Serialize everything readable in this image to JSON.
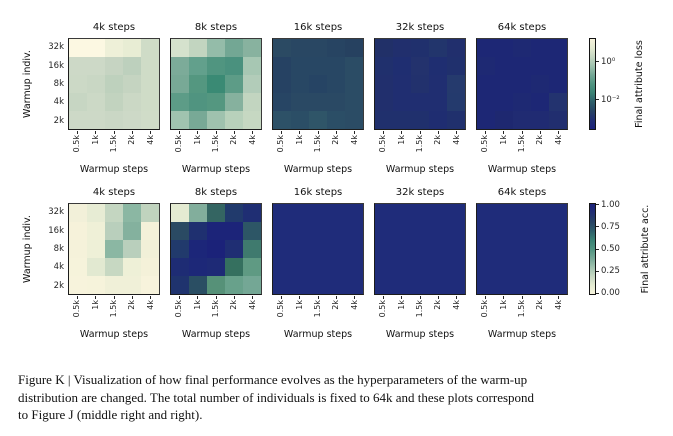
{
  "colors": {
    "background": "#ffffff",
    "text": "#1a1a1a",
    "tick_text": "#262626",
    "spine": "#2a2a2a",
    "colormap_stops": [
      "#f6f3dc",
      "#e3ead1",
      "#c5d7c2",
      "#9fc2ae",
      "#74a795",
      "#4f9480",
      "#3a8274",
      "#2e5e6a",
      "#274364",
      "#202e72",
      "#1b217a"
    ]
  },
  "chart_data": {
    "type": "heatmap",
    "x_categories": [
      "0.5k",
      "1k",
      "1.5k",
      "2k",
      "4k"
    ],
    "y_categories": [
      "32k",
      "16k",
      "8k",
      "4k",
      "2k"
    ],
    "xlabel": "Warmup steps",
    "ylabel": "Warmup indiv.",
    "grid": false,
    "rows": [
      {
        "metric": "Final attribute loss",
        "scale": "log",
        "colorbar": {
          "label": "Final attribute loss",
          "ticks": [
            "10⁰",
            "10⁻²"
          ],
          "tick_positions": [
            0.26,
            0.67
          ],
          "orientation": "vertical-right"
        },
        "panels": [
          {
            "title": "4k steps",
            "values": [
              [
                10,
                10,
                6,
                5,
                2.5
              ],
              [
                2.5,
                2.5,
                2.1,
                1.7,
                2.5
              ],
              [
                2.5,
                2.3,
                1.7,
                2.0,
                2.5
              ],
              [
                2.2,
                2.5,
                1.8,
                2.4,
                2.5
              ],
              [
                2.5,
                2.5,
                2.3,
                2.5,
                2.6
              ]
            ],
            "cell_colors": [
              [
                "#fcf8e2",
                "#fcf8e2",
                "#eef0d8",
                "#e8edd4",
                "#cfdcc7"
              ],
              [
                "#cdd9c7",
                "#cdd9c7",
                "#c6d4c2",
                "#bdd0bd",
                "#cfdcc7"
              ],
              [
                "#ccd9c6",
                "#c9d7c4",
                "#bed1bd",
                "#c5d4c1",
                "#cfdcc7"
              ],
              [
                "#c7d6c3",
                "#ccd9c6",
                "#c2d3bf",
                "#cbd8c5",
                "#cfdcc7"
              ],
              [
                "#cdd9c7",
                "#cdd9c7",
                "#cad7c5",
                "#cdd9c7",
                "#d0dcc8"
              ]
            ]
          },
          {
            "title": "8k steps",
            "values": [
              [
                2.8,
                1.9,
                0.55,
                0.25,
                0.4
              ],
              [
                0.32,
                0.18,
                0.11,
                0.1,
                1.0
              ],
              [
                0.3,
                0.12,
                0.06,
                0.15,
                1.3
              ],
              [
                0.15,
                0.11,
                0.12,
                0.45,
                1.9
              ],
              [
                0.9,
                0.3,
                0.85,
                1.5,
                2.0
              ]
            ],
            "cell_colors": [
              [
                "#d5e2cd",
                "#c2d5c0",
                "#94bca9",
                "#73a794",
                "#88b29f"
              ],
              [
                "#7cab99",
                "#62a08c",
                "#509580",
                "#4a917e",
                "#a7c7b3"
              ],
              [
                "#78a996",
                "#549780",
                "#3a8a74",
                "#5d9c87",
                "#b2ccb9"
              ],
              [
                "#5d9c87",
                "#509480",
                "#549780",
                "#86b19e",
                "#c2d5c0"
              ],
              [
                "#a0c3af",
                "#78a996",
                "#9fc2ae",
                "#b8d1bb",
                "#c6d8c2"
              ]
            ]
          },
          {
            "title": "16k steps",
            "values": [
              [
                0.004,
                0.0045,
                0.0045,
                0.005,
                0.0055
              ],
              [
                0.005,
                0.0042,
                0.0042,
                0.0042,
                0.0036
              ],
              [
                0.005,
                0.0042,
                0.0048,
                0.0042,
                0.0036
              ],
              [
                0.0046,
                0.004,
                0.004,
                0.004,
                0.0036
              ],
              [
                0.0028,
                0.0033,
                0.0025,
                0.0033,
                0.0036
              ]
            ],
            "cell_colors": [
              [
                "#2b4a63",
                "#294763",
                "#294763",
                "#274462",
                "#264160"
              ],
              [
                "#264263",
                "#284764",
                "#284764",
                "#284764",
                "#2b4c65"
              ],
              [
                "#264263",
                "#284764",
                "#264464",
                "#284764",
                "#2b4c65"
              ],
              [
                "#274564",
                "#2a4964",
                "#2a4964",
                "#2a4964",
                "#2b4c65"
              ],
              [
                "#2d5167",
                "#2b4e66",
                "#2f5568",
                "#2b4e66",
                "#2b4c65"
              ]
            ]
          },
          {
            "title": "32k steps",
            "values": [
              [
                0.0009,
                0.0008,
                0.0008,
                0.0011,
                0.0008
              ],
              [
                0.0008,
                0.0007,
                0.0009,
                0.0007,
                0.0008
              ],
              [
                0.0008,
                0.0007,
                0.0009,
                0.0007,
                0.0012
              ],
              [
                0.0008,
                0.0007,
                0.0007,
                0.0007,
                0.0012
              ],
              [
                0.0008,
                0.0008,
                0.0008,
                0.0007,
                0.0008
              ]
            ],
            "cell_colors": [
              [
                "#213068",
                "#212f6d",
                "#20306d",
                "#22356c",
                "#212f6d"
              ],
              [
                "#20306d",
                "#1f2e71",
                "#23326d",
                "#1f2e71",
                "#20306d"
              ],
              [
                "#212f6d",
                "#202e71",
                "#22316d",
                "#202e71",
                "#253a6d"
              ],
              [
                "#212f6d",
                "#202e71",
                "#202e71",
                "#202e71",
                "#243a6d"
              ],
              [
                "#20306d",
                "#20306d",
                "#20306d",
                "#1f2d71",
                "#20306d"
              ]
            ]
          },
          {
            "title": "64k steps",
            "values": [
              [
                0.0004,
                0.0004,
                0.00045,
                0.0004,
                0.0004
              ],
              [
                0.00045,
                0.0004,
                0.0004,
                0.0004,
                0.0004
              ],
              [
                0.0004,
                0.0004,
                0.0004,
                0.00045,
                0.0004
              ],
              [
                0.0004,
                0.0004,
                0.00045,
                0.0004,
                0.0007
              ],
              [
                0.0004,
                0.00045,
                0.0005,
                0.0005,
                0.0006
              ]
            ],
            "cell_colors": [
              [
                "#1d2775",
                "#1d2775",
                "#1e2973",
                "#1d2775",
                "#1d2775"
              ],
              [
                "#1e2973",
                "#1d2775",
                "#1d2775",
                "#1d2775",
                "#1d2775"
              ],
              [
                "#1d2775",
                "#1d2775",
                "#1d2775",
                "#1e2973",
                "#1d2775"
              ],
              [
                "#1d2775",
                "#1d2775",
                "#1e2973",
                "#1d2775",
                "#23336f"
              ],
              [
                "#1d2775",
                "#1e2870",
                "#202b72",
                "#202b72",
                "#212e6f"
              ]
            ]
          }
        ]
      },
      {
        "metric": "Final attribute acc.",
        "scale": "linear",
        "colorbar": {
          "label": "Final attribute acc.",
          "ticks": [
            "1.00",
            "0.75",
            "0.50",
            "0.25",
            "0.00"
          ],
          "tick_positions": [
            0.02,
            0.26,
            0.5,
            0.74,
            0.98
          ],
          "orientation": "vertical-right"
        },
        "panels": [
          {
            "title": "4k steps",
            "values": [
              [
                0.04,
                0.08,
                0.18,
                0.34,
                0.2
              ],
              [
                0.02,
                0.05,
                0.24,
                0.37,
                0.03
              ],
              [
                0.02,
                0.06,
                0.34,
                0.24,
                0.04
              ],
              [
                0.02,
                0.1,
                0.16,
                0.06,
                0.03
              ],
              [
                0.01,
                0.02,
                0.04,
                0.04,
                0.01
              ]
            ],
            "cell_colors": [
              [
                "#f2f0d9",
                "#e7ecd4",
                "#c4d6c1",
                "#8bb7a3",
                "#c0d3be"
              ],
              [
                "#f6f2da",
                "#eff0d7",
                "#b9cfbc",
                "#84b19e",
                "#f4f1d9"
              ],
              [
                "#f5f2da",
                "#eef0d7",
                "#8bb7a3",
                "#b9cfbc",
                "#f1f0d8"
              ],
              [
                "#f6f3db",
                "#e2e9d1",
                "#c7d8c2",
                "#eef0d7",
                "#f4f1d9"
              ],
              [
                "#f7f3dc",
                "#f6f3db",
                "#f0f0d8",
                "#f0f0d8",
                "#f7f3dc"
              ]
            ]
          },
          {
            "title": "8k steps",
            "values": [
              [
                0.09,
                0.36,
                0.62,
                0.8,
                0.88
              ],
              [
                0.72,
                0.85,
                0.95,
                0.95,
                0.68
              ],
              [
                0.8,
                0.93,
                0.96,
                0.88,
                0.55
              ],
              [
                0.9,
                0.92,
                0.91,
                0.6,
                0.47
              ],
              [
                0.82,
                0.7,
                0.48,
                0.44,
                0.41
              ]
            ],
            "cell_colors": [
              [
                "#e4ebd2",
                "#82ae9c",
                "#346562",
                "#213a6c",
                "#1f2e73"
              ],
              [
                "#2a4a63",
                "#1f3070",
                "#1c2479",
                "#1c2479",
                "#2d5666"
              ],
              [
                "#213a6c",
                "#1c2679",
                "#1b2279",
                "#1f2e73",
                "#3f7a6e"
              ],
              [
                "#1e2c74",
                "#1d2878",
                "#1e2a76",
                "#35705f",
                "#5f9a83"
              ],
              [
                "#1f336e",
                "#2a4e63",
                "#569178",
                "#68a18b",
                "#74a795"
              ]
            ]
          },
          {
            "title": "16k steps",
            "values": [
              [
                1.0,
                1.0,
                1.0,
                1.0,
                1.0
              ],
              [
                1.0,
                1.0,
                1.0,
                1.0,
                1.0
              ],
              [
                1.0,
                1.0,
                1.0,
                1.0,
                1.0
              ],
              [
                1.0,
                1.0,
                1.0,
                1.0,
                1.0
              ],
              [
                1.0,
                1.0,
                1.0,
                1.0,
                1.0
              ]
            ],
            "cell_colors": [
              [
                "#1f2c7a",
                "#1f2c7a",
                "#1f2c7a",
                "#1f2c7a",
                "#1f2c7a"
              ],
              [
                "#1f2c7a",
                "#1f2c7a",
                "#1f2c7a",
                "#1f2c7a",
                "#1f2c7a"
              ],
              [
                "#1f2c7a",
                "#1f2c7a",
                "#1f2c7a",
                "#1f2c7a",
                "#1f2c7a"
              ],
              [
                "#1f2c7a",
                "#1f2c7a",
                "#1f2c7a",
                "#1f2c7a",
                "#1f2c7a"
              ],
              [
                "#1f2c7a",
                "#1f2c7a",
                "#1f2c7a",
                "#1f2c7a",
                "#1f2c7a"
              ]
            ]
          },
          {
            "title": "32k steps",
            "values": [
              [
                1.0,
                1.0,
                1.0,
                1.0,
                1.0
              ],
              [
                1.0,
                1.0,
                1.0,
                1.0,
                1.0
              ],
              [
                1.0,
                1.0,
                1.0,
                1.0,
                1.0
              ],
              [
                1.0,
                1.0,
                1.0,
                1.0,
                1.0
              ],
              [
                1.0,
                1.0,
                1.0,
                1.0,
                1.0
              ]
            ],
            "cell_colors": [
              [
                "#1f2c7a",
                "#1f2c7a",
                "#1f2c7a",
                "#1f2c7a",
                "#1f2c7a"
              ],
              [
                "#1f2c7a",
                "#1f2c7a",
                "#1f2c7a",
                "#1f2c7a",
                "#1f2c7a"
              ],
              [
                "#1f2c7a",
                "#1f2c7a",
                "#1f2c7a",
                "#1f2c7a",
                "#1f2c7a"
              ],
              [
                "#1f2c7a",
                "#1f2c7a",
                "#1f2c7a",
                "#1f2c7a",
                "#1f2c7a"
              ],
              [
                "#1f2c7a",
                "#1f2c7a",
                "#1f2c7a",
                "#1f2c7a",
                "#1f2c7a"
              ]
            ]
          },
          {
            "title": "64k steps",
            "values": [
              [
                1.0,
                1.0,
                1.0,
                1.0,
                1.0
              ],
              [
                1.0,
                1.0,
                1.0,
                1.0,
                1.0
              ],
              [
                1.0,
                1.0,
                1.0,
                1.0,
                1.0
              ],
              [
                1.0,
                1.0,
                1.0,
                1.0,
                1.0
              ],
              [
                1.0,
                1.0,
                1.0,
                1.0,
                1.0
              ]
            ],
            "cell_colors": [
              [
                "#1f2c7a",
                "#1f2c7a",
                "#1f2c7a",
                "#1f2c7a",
                "#1f2c7a"
              ],
              [
                "#1f2c7a",
                "#1f2c7a",
                "#1f2c7a",
                "#1f2c7a",
                "#1f2c7a"
              ],
              [
                "#1f2c7a",
                "#1f2c7a",
                "#1f2c7a",
                "#1f2c7a",
                "#1f2c7a"
              ],
              [
                "#1f2c7a",
                "#1f2c7a",
                "#1f2c7a",
                "#1f2c7a",
                "#1f2c7a"
              ],
              [
                "#1f2c7a",
                "#1f2c7a",
                "#1f2c7a",
                "#1f2c7a",
                "#1f2c7a"
              ]
            ]
          }
        ]
      }
    ]
  },
  "caption": {
    "lines": [
      "Figure K | Visualization of how final performance evolves as the hyperparameters of the warm-up",
      "distribution are changed. The total number of individuals is fixed to 64k and these plots correspond",
      "to Figure J (middle right and right)."
    ]
  }
}
